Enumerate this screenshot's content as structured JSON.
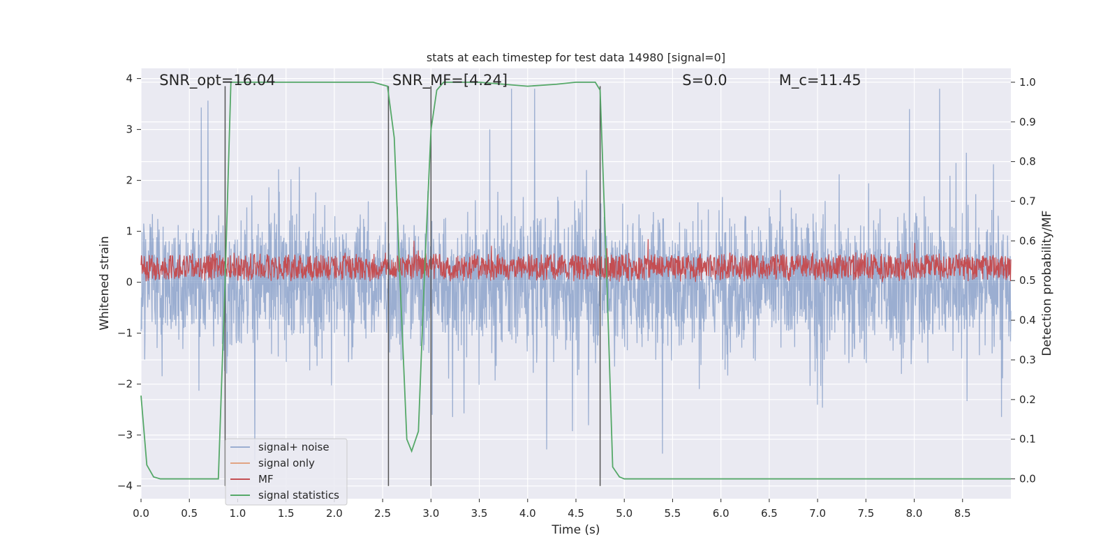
{
  "chart_data": {
    "type": "line",
    "title": "stats at each timestep for test data 14980 [signal=0]",
    "xlabel": "Time (s)",
    "ylabel_left": "Whitened strain",
    "ylabel_right": "Detection probability/MF",
    "xlim": [
      0.0,
      9.0
    ],
    "ylim_left": [
      -4.25,
      4.2
    ],
    "ylim_right": [
      -0.05,
      1.035
    ],
    "grid": true,
    "x_ticks": [
      "0.0",
      "0.5",
      "1.0",
      "1.5",
      "2.0",
      "2.5",
      "3.0",
      "3.5",
      "4.0",
      "4.5",
      "5.0",
      "5.5",
      "6.0",
      "6.5",
      "7.0",
      "7.5",
      "8.0",
      "8.5"
    ],
    "y_ticks_left": [
      "4",
      "3",
      "2",
      "1",
      "0",
      "−1",
      "−2",
      "−3",
      "−4"
    ],
    "y_ticks_right": [
      "1.0",
      "0.9",
      "0.8",
      "0.7",
      "0.6",
      "0.5",
      "0.4",
      "0.3",
      "0.2",
      "0.1",
      "0.0"
    ],
    "annotations": [
      {
        "text": "SNR_opt=16.04",
        "x": 0.19
      },
      {
        "text": "SNR_MF=[4.24]",
        "x": 2.6
      },
      {
        "text": "S=0.0",
        "x": 5.6
      },
      {
        "text": "M_c=11.45",
        "x": 6.6
      }
    ],
    "legend_position": "lower-left",
    "vlines": [
      0.87,
      2.56,
      3.0,
      4.75
    ],
    "vline_range_left": [
      -4.0,
      3.85
    ],
    "series": [
      {
        "name": "signal+ noise",
        "color": "#4c72b0",
        "axis": "left",
        "description_values": {
          "mean": 0.0,
          "envelope_max": 3.8,
          "envelope_min": -4.0
        }
      },
      {
        "name": "signal only",
        "color": "#dd8452",
        "axis": "left",
        "values": []
      },
      {
        "name": "MF",
        "color": "#c44e52",
        "axis": "left",
        "description_values": {
          "mean": 0.3,
          "range": [
            0.0,
            1.0
          ]
        }
      },
      {
        "name": "signal statistics",
        "color": "#55a868",
        "axis": "right",
        "x": [
          0.0,
          0.06,
          0.13,
          0.2,
          0.4,
          0.6,
          0.8,
          0.87,
          0.93,
          1.0,
          1.5,
          2.0,
          2.4,
          2.55,
          2.62,
          2.68,
          2.75,
          2.8,
          2.87,
          2.93,
          3.0,
          3.06,
          3.13,
          3.2,
          3.5,
          4.0,
          4.3,
          4.5,
          4.7,
          4.75,
          4.82,
          4.88,
          4.95,
          5.0,
          6.0,
          7.0,
          8.0,
          9.0
        ],
        "y": [
          0.21,
          0.035,
          0.005,
          0.0,
          0.0,
          0.0,
          0.0,
          0.5,
          1.0,
          1.0,
          1.0,
          1.0,
          1.0,
          0.99,
          0.86,
          0.5,
          0.1,
          0.07,
          0.12,
          0.5,
          0.88,
          0.98,
          1.0,
          1.0,
          1.0,
          0.99,
          0.995,
          1.0,
          1.0,
          0.98,
          0.5,
          0.03,
          0.005,
          0.0,
          0.0,
          0.0,
          0.0,
          0.0
        ]
      }
    ]
  }
}
